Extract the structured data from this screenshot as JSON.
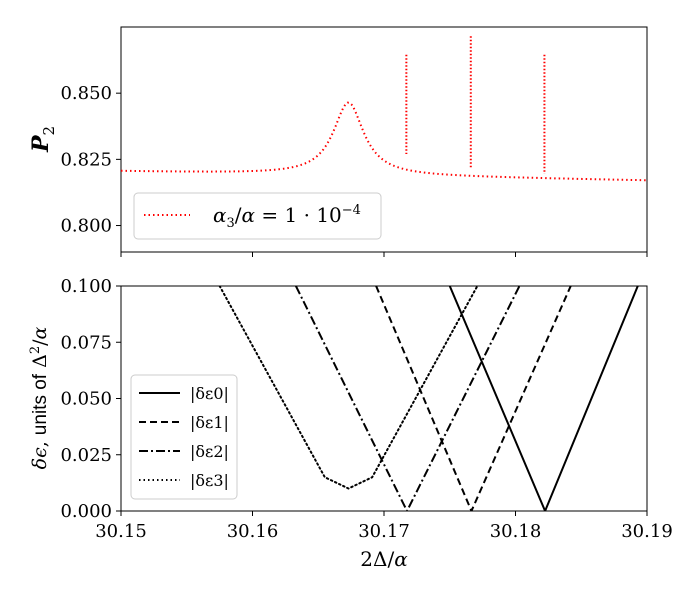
{
  "chart_data": [
    {
      "type": "line",
      "ylabel": "P_2",
      "xlim": [
        30.15,
        30.19
      ],
      "ylim": [
        0.79,
        0.875
      ],
      "yticks": [
        "0.800",
        "0.825",
        "0.850"
      ],
      "grid": false,
      "legend_placement": "lower-left",
      "series": [
        {
          "name": "α3/α = 1 · 10^−4",
          "color": "#ff0000",
          "style": "dotted",
          "baseline": {
            "left": 0.8205,
            "right": 0.817
          },
          "bump": {
            "center": 30.1673,
            "height": 0.0275,
            "width": 0.0014
          },
          "spikes": [
            {
              "x": 30.1717,
              "top": 0.8645,
              "bottom": 0.827
            },
            {
              "x": 30.1766,
              "top": 0.8715,
              "bottom": 0.8215
            },
            {
              "x": 30.1822,
              "top": 0.8645,
              "bottom": 0.8195
            }
          ]
        }
      ]
    },
    {
      "type": "line",
      "xlabel": "2Δ/α",
      "ylabel": "δε, units of Δ²/α",
      "xlim": [
        30.15,
        30.19
      ],
      "ylim": [
        0.0,
        0.1
      ],
      "xticks": [
        "30.15",
        "30.16",
        "30.17",
        "30.18",
        "30.19"
      ],
      "yticks": [
        "0.000",
        "0.025",
        "0.050",
        "0.075",
        "0.100"
      ],
      "grid": false,
      "legend_placement": "lower-left",
      "series": [
        {
          "name": "|δε0|",
          "style": "solid",
          "color": "#000000",
          "x": [
            30.175,
            30.18225,
            30.1893
          ],
          "y": [
            0.1,
            0.0,
            0.1
          ]
        },
        {
          "name": "|δε1|",
          "style": "dashed",
          "color": "#000000",
          "x": [
            30.1694,
            30.17665,
            30.1842
          ],
          "y": [
            0.1,
            0.0,
            0.1
          ]
        },
        {
          "name": "|δε2|",
          "style": "dashdot",
          "color": "#000000",
          "x": [
            30.1633,
            30.17175,
            30.1803
          ],
          "y": [
            0.1,
            0.0,
            0.1
          ]
        },
        {
          "name": "|δε3|",
          "style": "dotted",
          "color": "#000000",
          "x": [
            30.1575,
            30.1655,
            30.1673,
            30.1691,
            30.1771
          ],
          "y": [
            0.1,
            0.015,
            0.01,
            0.015,
            0.1
          ]
        }
      ]
    }
  ]
}
